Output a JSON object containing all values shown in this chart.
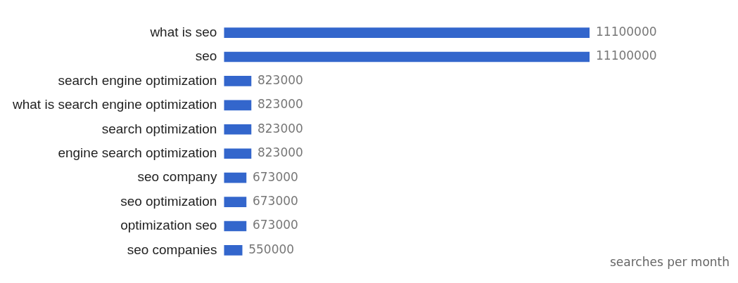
{
  "chart_data": {
    "type": "bar",
    "orientation": "horizontal",
    "categories": [
      "what is seo",
      "seo",
      "search engine optimization",
      "what is search engine optimization",
      "search optimization",
      "engine search optimization",
      "seo company",
      "seo optimization",
      "optimization seo",
      "seo companies"
    ],
    "values": [
      11100000,
      11100000,
      823000,
      823000,
      823000,
      823000,
      673000,
      673000,
      673000,
      550000
    ],
    "color": "#3366cc",
    "xlim": [
      0,
      11100000
    ],
    "data_labels": true,
    "grid": false,
    "xlabel": "searches per month"
  }
}
